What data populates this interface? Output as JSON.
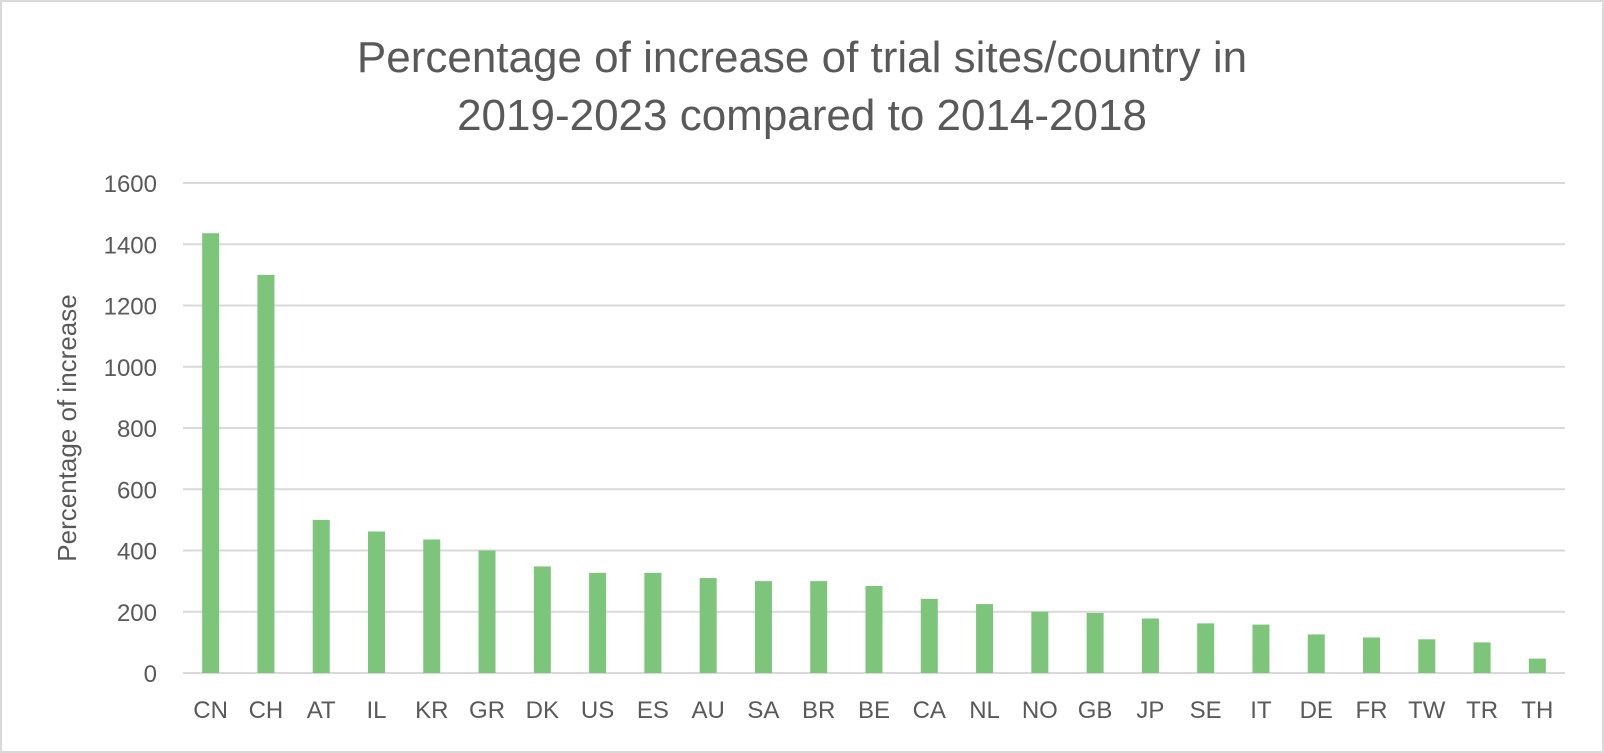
{
  "chart_data": {
    "type": "bar",
    "title_lines": [
      "Percentage  of increase of trial sites/country  in",
      "2019-2023  compared to 2014-2018"
    ],
    "xlabel": "",
    "ylabel": "Percentage of increase",
    "ylim": [
      0,
      1600
    ],
    "yticks": [
      "0",
      "200",
      "400",
      "600",
      "800",
      "1000",
      "1200",
      "1400",
      "1600"
    ],
    "grid": true,
    "categories": [
      "CN",
      "CH",
      "AT",
      "IL",
      "KR",
      "GR",
      "DK",
      "US",
      "ES",
      "AU",
      "SA",
      "BR",
      "BE",
      "CA",
      "NL",
      "NO",
      "GB",
      "JP",
      "SE",
      "IT",
      "DE",
      "FR",
      "TW",
      "TR",
      "TH"
    ],
    "values": [
      1436,
      1300,
      500,
      462,
      436,
      400,
      348,
      327,
      327,
      310,
      300,
      300,
      284,
      242,
      225,
      200,
      196,
      178,
      162,
      158,
      126,
      116,
      110,
      100,
      47
    ],
    "bar_color": "#7dc57a"
  }
}
